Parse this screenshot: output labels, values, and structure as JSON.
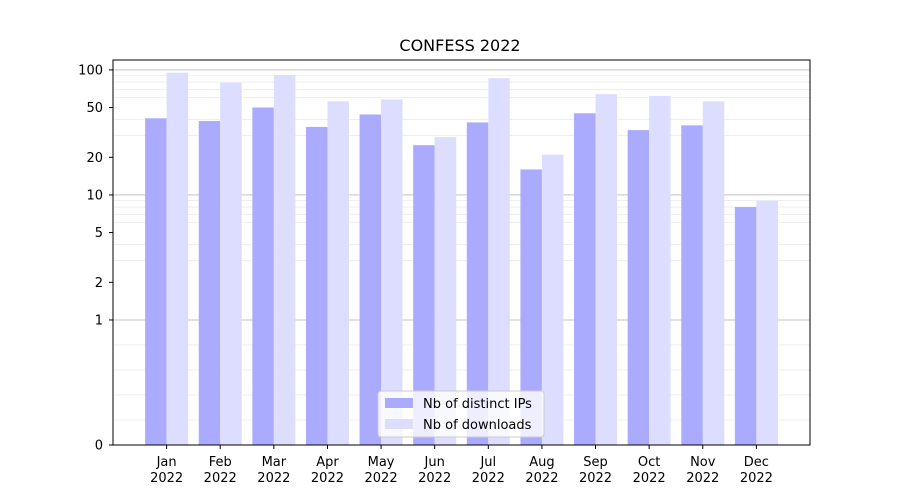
{
  "chart_data": {
    "type": "bar",
    "title": "CONFESS 2022",
    "xlabel": "",
    "ylabel": "",
    "y_scale": "symlog",
    "ylim": [
      0,
      120
    ],
    "y_ticks": [
      0,
      1,
      2,
      5,
      10,
      20,
      50,
      100
    ],
    "categories": [
      "Jan\n2022",
      "Feb\n2022",
      "Mar\n2022",
      "Apr\n2022",
      "May\n2022",
      "Jun\n2022",
      "Jul\n2022",
      "Aug\n2022",
      "Sep\n2022",
      "Oct\n2022",
      "Nov\n2022",
      "Dec\n2022"
    ],
    "series": [
      {
        "name": "Nb of distinct IPs",
        "color": "#aaaaff",
        "values": [
          41,
          39,
          50,
          35,
          44,
          25,
          38,
          16,
          45,
          33,
          36,
          8
        ]
      },
      {
        "name": "Nb of downloads",
        "color": "#ddddff",
        "values": [
          95,
          79,
          91,
          56,
          58,
          29,
          86,
          21,
          64,
          62,
          56,
          9
        ]
      }
    ],
    "grid": true,
    "legend_position": "bottom-center"
  }
}
